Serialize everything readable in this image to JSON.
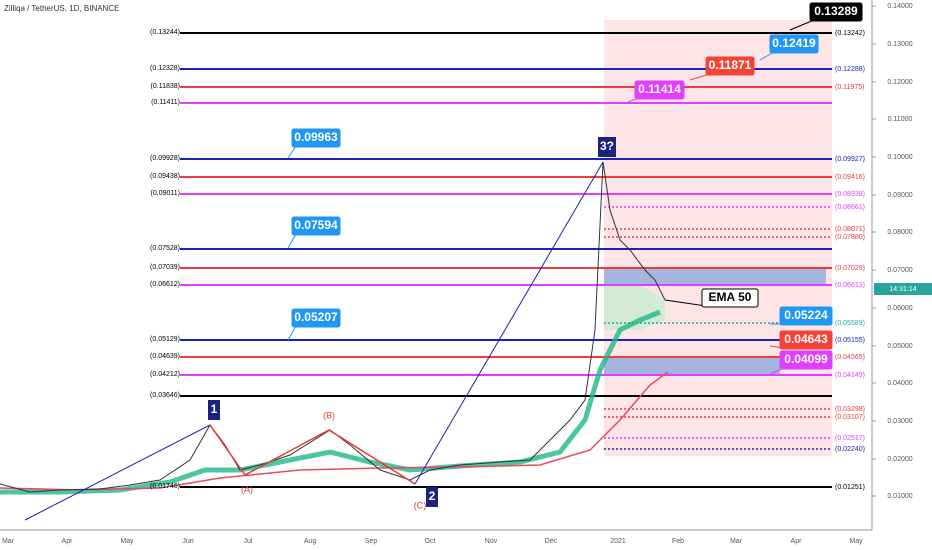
{
  "header": {
    "title": "Zilliqa / TetherUS, 1D, BINANCE"
  },
  "price_axis": {
    "labels": [
      "0.14000",
      "0.13000",
      "0.12000",
      "0.11000",
      "0.10000",
      "0.09000",
      "0.08000",
      "0.07000",
      "0.06000",
      "0.05000",
      "0.04000",
      "0.03000",
      "0.02000",
      "0.01000"
    ],
    "timer": "14:31:14"
  },
  "time_axis": {
    "labels": [
      "Mar",
      "Apr",
      "May",
      "Jun",
      "Jul",
      "Aug",
      "Sep",
      "Oct",
      "Nov",
      "Dec",
      "2021",
      "Feb",
      "Mar",
      "Apr",
      "May"
    ]
  },
  "levels": [
    {
      "left": "(0.13244)",
      "right": "(0.13242)",
      "color": "#000000"
    },
    {
      "left": "(0.12328)",
      "right": "(0.12288)",
      "color": "#1a23b8"
    },
    {
      "left": "(0.11838)",
      "right": "(0.11975)",
      "color": "#ef3b3b"
    },
    {
      "left": "(0.11411)",
      "right": null,
      "color": "#e040fb"
    },
    {
      "left": "(0.09928)",
      "right": "(0.09927)",
      "color": "#1a23b8"
    },
    {
      "left": "(0.09438)",
      "right": "(0.09416)",
      "color": "#ef3b3b"
    },
    {
      "left": "(0.09011)",
      "right": "(0.08938)",
      "color": "#e040fb"
    },
    {
      "left": "(0.07528)",
      "right": null,
      "color": "#1a23b8"
    },
    {
      "left": "(0.07039)",
      "right": "(0.07029)",
      "color": "#ef3b3b"
    },
    {
      "left": "(0.06612)",
      "right": "(0.06613)",
      "color": "#e040fb"
    },
    {
      "left": "(0.05129)",
      "right": "(0.05155)",
      "color": "#1a23b8"
    },
    {
      "left": "(0.04639)",
      "right": "(0.04565)",
      "color": "#ef3b3b"
    },
    {
      "left": "(0.04212)",
      "right": "(0.04149)",
      "color": "#e040fb"
    },
    {
      "left": "(0.03646)",
      "right": null,
      "color": "#000000"
    },
    {
      "left": "(0.01746)",
      "right": "(0.01251)",
      "color": "#000000"
    }
  ],
  "dotted_levels": [
    {
      "label": "(0.08661)",
      "color": "#e040fb"
    },
    {
      "label": "(0.08071)",
      "color": "#ef3b3b"
    },
    {
      "label": "(0.07880)",
      "color": "#ef3b3b"
    },
    {
      "label": "(0.05589)",
      "color": "#26a69a"
    },
    {
      "label": "(0.03298)",
      "color": "#ef3b3b"
    },
    {
      "label": "(0.03107)",
      "color": "#ef3b3b"
    },
    {
      "label": "(0.02517)",
      "color": "#e040fb"
    },
    {
      "label": "(0.02240)",
      "color": "#1a23b8"
    }
  ],
  "callouts": [
    {
      "text": "0.13289",
      "color": "#000000"
    },
    {
      "text": "0.12419",
      "color": "#2196f3"
    },
    {
      "text": "0.11871",
      "color": "#f44336"
    },
    {
      "text": "0.11414",
      "color": "#e040fb"
    },
    {
      "text": "0.09963",
      "color": "#2196f3"
    },
    {
      "text": "0.07594",
      "color": "#2196f3"
    },
    {
      "text": "0.05207",
      "color": "#2196f3"
    },
    {
      "text": "0.05224",
      "color": "#2196f3"
    },
    {
      "text": "0.04643",
      "color": "#f44336"
    },
    {
      "text": "0.04099",
      "color": "#e040fb"
    },
    {
      "text": "EMA 50",
      "color": "#ffffff"
    }
  ],
  "waves": [
    "1",
    "2",
    "3?",
    "(A)",
    "(B)",
    "(C)"
  ]
}
